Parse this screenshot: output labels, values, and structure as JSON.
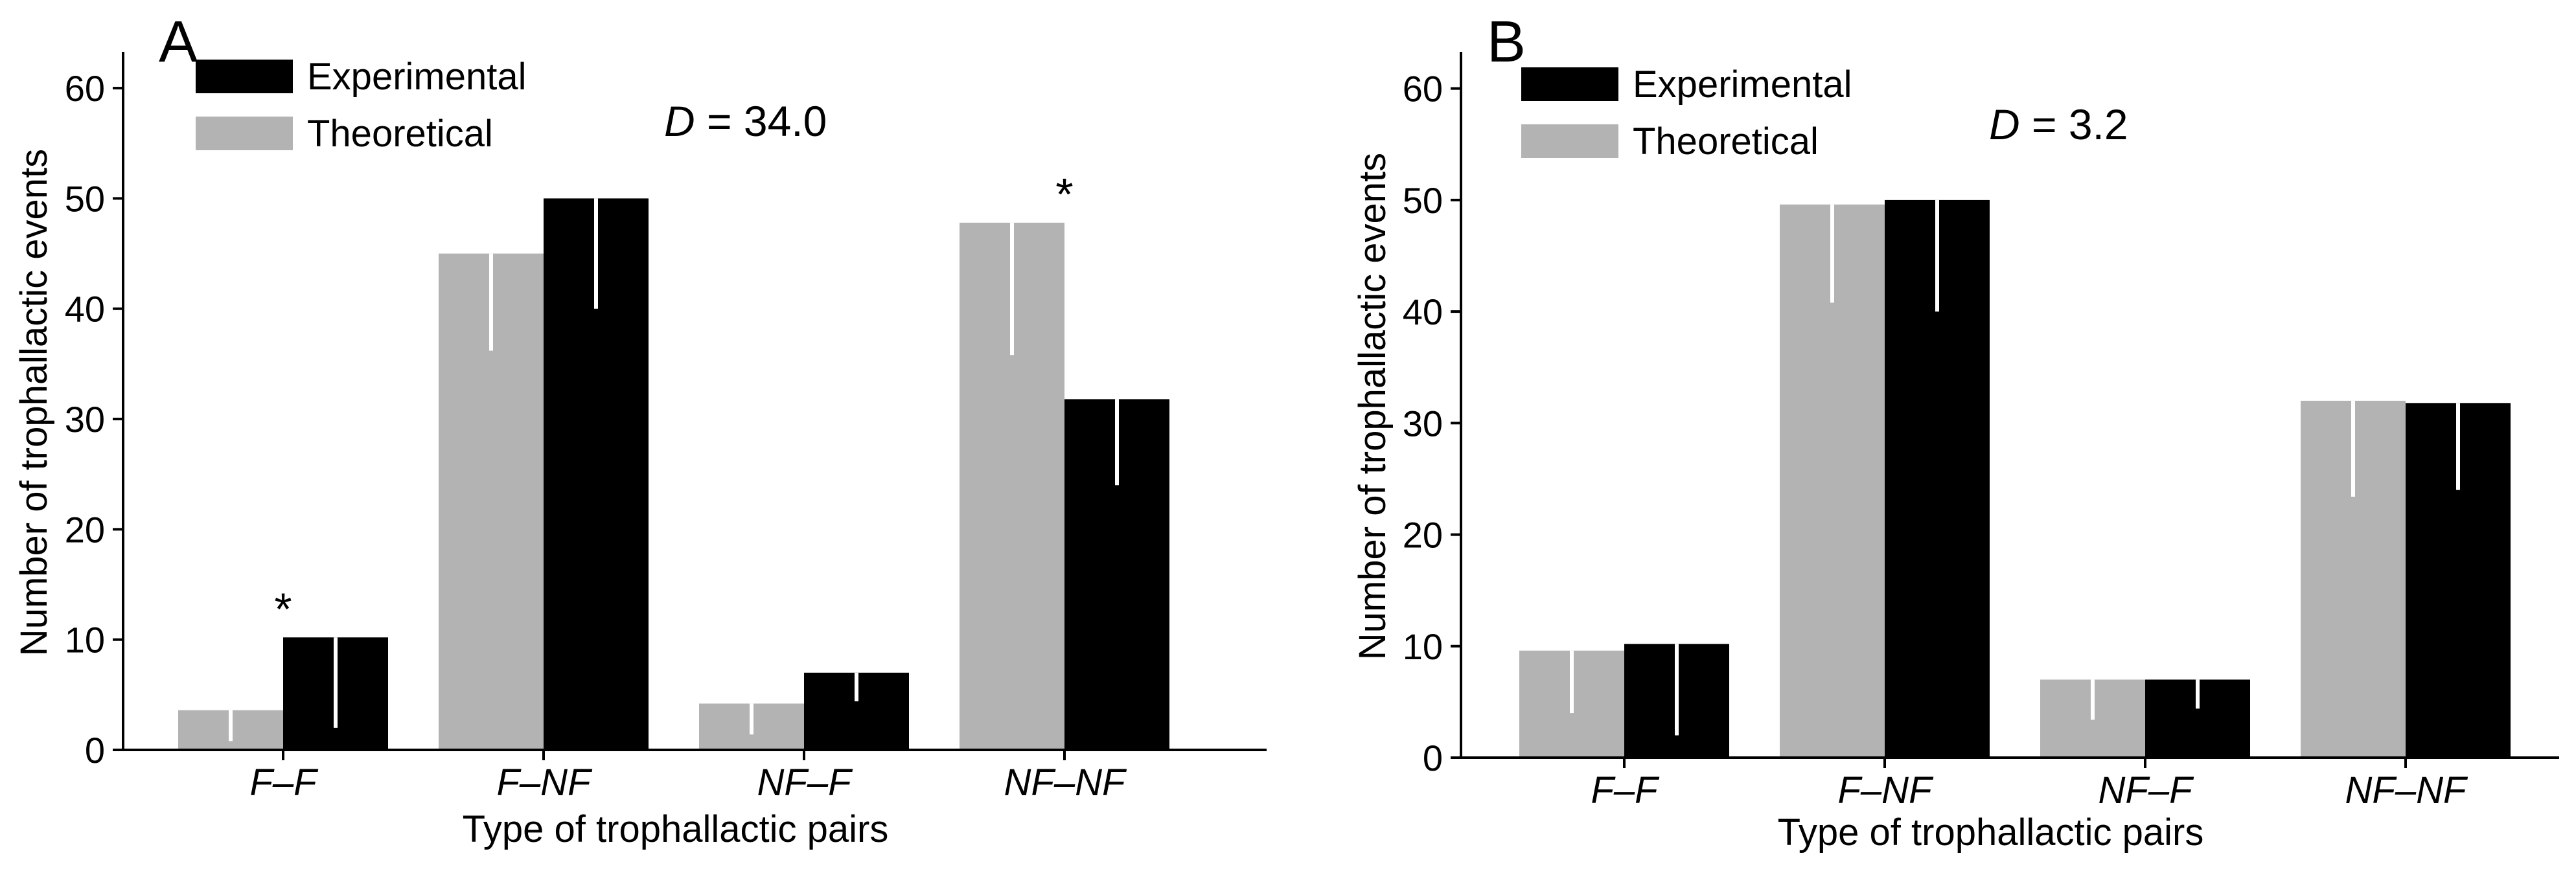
{
  "chart_data": [
    {
      "type": "bar",
      "panel": "A",
      "statistic": {
        "symbol": "D",
        "text": " = 34.0"
      },
      "categories": [
        "F–F",
        "F–NF",
        "NF–F",
        "NF–NF"
      ],
      "series": [
        {
          "name": "Theoretical",
          "color": "#b3b3b3",
          "values": [
            3.6,
            45.0,
            4.2,
            47.8
          ],
          "lower": [
            0.8,
            36.2,
            1.4,
            35.8
          ]
        },
        {
          "name": "Experimental",
          "color": "#000000",
          "values": [
            10.2,
            50.0,
            7.0,
            31.8
          ],
          "lower": [
            2.0,
            40.0,
            4.4,
            24.0
          ]
        }
      ],
      "significance": [
        {
          "series": "Experimental",
          "category": "F–F",
          "mark": "*"
        },
        {
          "series": "Theoretical",
          "category": "NF–NF",
          "mark": "*"
        }
      ],
      "xlabel": "Type of trophallactic pairs",
      "ylabel": "Number of trophallactic events",
      "ylim": [
        0,
        63
      ],
      "yticks": [
        "0",
        "10",
        "20",
        "30",
        "40",
        "50",
        "60"
      ],
      "legend": {
        "position": "top-left",
        "entries": [
          "Experimental",
          "Theoretical"
        ]
      }
    },
    {
      "type": "bar",
      "panel": "B",
      "statistic": {
        "symbol": "D",
        "text": " = 3.2"
      },
      "categories": [
        "F–F",
        "F–NF",
        "NF–F",
        "NF–NF"
      ],
      "series": [
        {
          "name": "Theoretical",
          "color": "#b3b3b3",
          "values": [
            9.6,
            49.6,
            7.0,
            32.0
          ],
          "lower": [
            4.0,
            40.8,
            3.4,
            23.4
          ]
        },
        {
          "name": "Experimental",
          "color": "#000000",
          "values": [
            10.2,
            50.0,
            7.0,
            31.8
          ],
          "lower": [
            2.0,
            40.0,
            4.4,
            24.0
          ]
        }
      ],
      "significance": [],
      "xlabel": "Type of trophallactic pairs",
      "ylabel": "Number of trophallactic events",
      "ylim": [
        0,
        63
      ],
      "yticks": [
        "0",
        "10",
        "20",
        "30",
        "40",
        "50",
        "60"
      ],
      "legend": {
        "position": "top-left",
        "entries": [
          "Experimental",
          "Theoretical"
        ]
      }
    }
  ]
}
